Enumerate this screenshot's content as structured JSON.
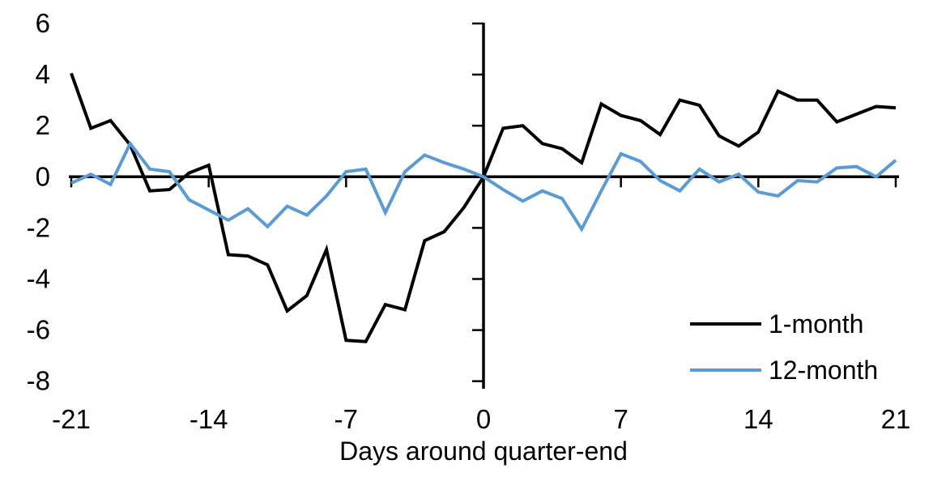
{
  "chart_data": {
    "type": "line",
    "title": "",
    "xlabel": "Days around quarter-end",
    "ylabel": "",
    "x": [
      -21,
      -20,
      -19,
      -18,
      -17,
      -16,
      -15,
      -14,
      -13,
      -12,
      -11,
      -10,
      -9,
      -8,
      -7,
      -6,
      -5,
      -4,
      -3,
      -2,
      -1,
      0,
      1,
      2,
      3,
      4,
      5,
      6,
      7,
      8,
      9,
      10,
      11,
      12,
      13,
      14,
      15,
      16,
      17,
      18,
      19,
      20,
      21
    ],
    "series": [
      {
        "name": "1-month",
        "color": "#000000",
        "values": [
          4.05,
          1.9,
          2.2,
          1.25,
          -0.55,
          -0.5,
          0.15,
          0.45,
          -3.05,
          -3.1,
          -3.45,
          -5.25,
          -4.65,
          -2.85,
          -6.4,
          -6.45,
          -5.0,
          -5.2,
          -2.5,
          -2.15,
          -1.2,
          0,
          1.9,
          2.0,
          1.3,
          1.1,
          0.55,
          2.85,
          2.4,
          2.2,
          1.65,
          3.0,
          2.8,
          1.6,
          1.2,
          1.75,
          3.35,
          3.0,
          3.0,
          2.15,
          2.45,
          2.75,
          2.7
        ]
      },
      {
        "name": "12-month",
        "color": "#5B9BD5",
        "values": [
          -0.25,
          0.1,
          -0.3,
          1.3,
          0.3,
          0.2,
          -0.9,
          -1.3,
          -1.7,
          -1.25,
          -1.95,
          -1.15,
          -1.5,
          -0.75,
          0.2,
          0.3,
          -1.4,
          0.2,
          0.85,
          0.55,
          0.3,
          0,
          -0.5,
          -0.95,
          -0.55,
          -0.85,
          -2.05,
          -0.55,
          0.9,
          0.6,
          -0.15,
          -0.55,
          0.3,
          -0.2,
          0.1,
          -0.6,
          -0.75,
          -0.15,
          -0.2,
          0.35,
          0.4,
          0.0,
          0.65
        ]
      }
    ],
    "xlim": [
      -21,
      21
    ],
    "ylim": [
      -8,
      6
    ],
    "xticks": [
      -21,
      -14,
      -7,
      0,
      7,
      14,
      21
    ],
    "yticks": [
      6,
      4,
      2,
      0,
      -2,
      -4,
      -6,
      -8
    ],
    "grid": "off",
    "legend_position": "lower-right",
    "axis_color": "#000000"
  }
}
